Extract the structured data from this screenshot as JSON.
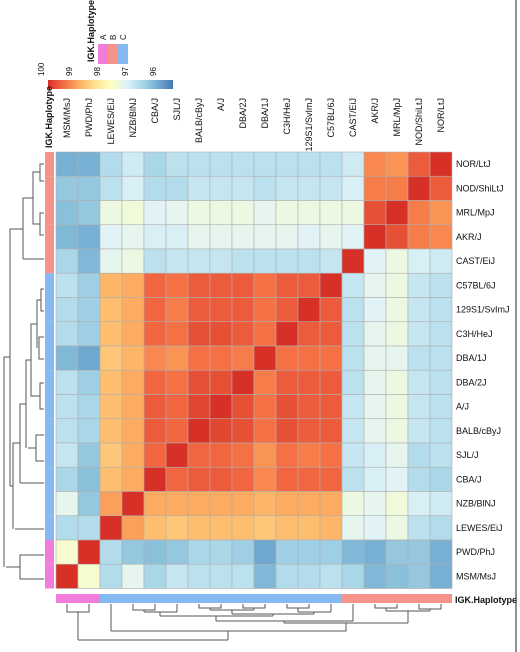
{
  "chart_data": {
    "type": "heatmap",
    "samples": [
      "MSM/MsJ",
      "PWD/PhJ",
      "LEWES/EiJ",
      "NZB/BlNJ",
      "CBA/J",
      "SJL/J",
      "BALB/cByJ",
      "A/J",
      "DBA/2J",
      "DBA/1J",
      "C3H/HeJ",
      "129S1/SvImJ",
      "C57BL/6J",
      "CAST/EiJ",
      "AKR/J",
      "MRL/MpJ",
      "NOD/ShiLtJ",
      "NOR/LtJ"
    ],
    "row_order": [
      "NOR/LtJ",
      "NOD/ShiLtJ",
      "MRL/MpJ",
      "AKR/J",
      "CAST/EiJ",
      "C57BL/6J",
      "129S1/SvImJ",
      "C3H/HeJ",
      "DBA/1J",
      "DBA/2J",
      "A/J",
      "BALB/cByJ",
      "SJL/J",
      "CBA/J",
      "NZB/BlNJ",
      "LEWES/EiJ",
      "PWD/PhJ",
      "MSM/MsJ"
    ],
    "annotation_title": "IGK.Haplotype",
    "haplotype_legend": [
      {
        "label": "A",
        "color": "#F17DDA"
      },
      {
        "label": "B",
        "color": "#F5928A"
      },
      {
        "label": "C",
        "color": "#84B9F2"
      }
    ],
    "haplotype": {
      "MSM/MsJ": "A",
      "PWD/PhJ": "A",
      "LEWES/EiJ": "C",
      "NZB/BlNJ": "C",
      "CBA/J": "C",
      "SJL/J": "C",
      "BALB/cByJ": "C",
      "A/J": "C",
      "DBA/2J": "C",
      "DBA/1J": "C",
      "C3H/HeJ": "C",
      "129S1/SvImJ": "C",
      "C57BL/6J": "C",
      "CAST/EiJ": "B",
      "AKR/J": "B",
      "MRL/MpJ": "B",
      "NOD/ShiLtJ": "B",
      "NOR/LtJ": "B"
    },
    "color_scale": {
      "ticks": [
        100,
        99,
        98,
        97,
        96
      ],
      "range": [
        95.5,
        100
      ],
      "colors": [
        "#D73027",
        "#F46D43",
        "#FDAE61",
        "#FEE090",
        "#FFFFBF",
        "#E0F3F8",
        "#ABD9E9",
        "#74ADD1",
        "#4575B4"
      ]
    },
    "matrix": [
      [
        100,
        97.6,
        96.7,
        97.3,
        96.6,
        96.9,
        96.8,
        96.8,
        96.8,
        96.2,
        96.7,
        96.7,
        96.8,
        96.6,
        96.2,
        96.3,
        96.4,
        96.1
      ],
      [
        97.6,
        100,
        96.7,
        96.4,
        96.3,
        96.4,
        96.6,
        96.6,
        96.5,
        96.0,
        96.5,
        96.5,
        96.5,
        96.2,
        96.1,
        96.4,
        96.4,
        96.1
      ],
      [
        96.7,
        96.7,
        100,
        99.0,
        98.7,
        98.6,
        98.7,
        98.7,
        98.7,
        98.6,
        98.7,
        98.7,
        98.8,
        97.3,
        97.2,
        97.4,
        96.8,
        96.7
      ],
      [
        97.3,
        96.4,
        99.0,
        100,
        98.9,
        98.9,
        98.9,
        98.9,
        98.9,
        98.8,
        98.9,
        98.9,
        98.9,
        97.4,
        97.3,
        97.5,
        97.1,
        97.0
      ],
      [
        96.6,
        96.3,
        98.7,
        98.9,
        100,
        99.5,
        99.6,
        99.6,
        99.5,
        99.2,
        99.5,
        99.5,
        99.5,
        96.8,
        97.1,
        97.2,
        96.7,
        96.6
      ],
      [
        96.9,
        96.4,
        98.6,
        98.9,
        99.5,
        100,
        99.5,
        99.5,
        99.4,
        99.1,
        99.4,
        99.3,
        99.4,
        96.9,
        97.1,
        97.3,
        96.7,
        96.8
      ],
      [
        96.8,
        96.6,
        98.7,
        98.9,
        99.6,
        99.5,
        100,
        99.8,
        99.7,
        99.4,
        99.7,
        99.6,
        99.6,
        96.9,
        97.3,
        97.4,
        96.9,
        96.8
      ],
      [
        96.8,
        96.6,
        98.7,
        98.9,
        99.6,
        99.5,
        99.8,
        100,
        99.7,
        99.4,
        99.7,
        99.6,
        99.6,
        96.9,
        97.3,
        97.4,
        96.9,
        96.8
      ],
      [
        96.8,
        96.5,
        98.7,
        98.9,
        99.5,
        99.4,
        99.7,
        99.7,
        100,
        99.3,
        99.6,
        99.6,
        99.6,
        96.8,
        97.3,
        97.4,
        96.9,
        96.8
      ],
      [
        96.2,
        96.0,
        98.6,
        98.8,
        99.2,
        99.1,
        99.4,
        99.4,
        99.3,
        100,
        99.4,
        99.4,
        99.4,
        96.8,
        97.3,
        97.3,
        96.8,
        96.8
      ],
      [
        96.7,
        96.5,
        98.7,
        98.9,
        99.5,
        99.4,
        99.7,
        99.7,
        99.6,
        99.4,
        100,
        99.6,
        99.6,
        96.8,
        97.3,
        97.4,
        96.9,
        96.8
      ],
      [
        96.7,
        96.5,
        98.7,
        98.9,
        99.5,
        99.3,
        99.6,
        99.6,
        99.6,
        99.4,
        99.6,
        100,
        99.6,
        96.8,
        97.2,
        97.4,
        96.9,
        96.8
      ],
      [
        96.8,
        96.5,
        98.8,
        98.9,
        99.5,
        99.4,
        99.6,
        99.6,
        99.6,
        99.4,
        99.6,
        99.6,
        100,
        96.9,
        97.3,
        97.4,
        96.9,
        96.8
      ],
      [
        96.6,
        96.2,
        97.3,
        97.4,
        96.8,
        96.9,
        96.9,
        96.9,
        96.8,
        96.8,
        96.8,
        96.8,
        96.9,
        100,
        97.2,
        97.4,
        97.1,
        97.0
      ],
      [
        96.2,
        96.1,
        97.2,
        97.3,
        97.1,
        97.1,
        97.3,
        97.3,
        97.3,
        97.3,
        97.3,
        97.2,
        97.3,
        97.2,
        100,
        99.7,
        99.3,
        99.2
      ],
      [
        96.3,
        96.4,
        97.4,
        97.5,
        97.2,
        97.3,
        97.4,
        97.4,
        97.4,
        97.3,
        97.4,
        97.4,
        97.4,
        97.4,
        99.7,
        100,
        99.3,
        99.1
      ],
      [
        96.4,
        96.4,
        96.8,
        97.1,
        96.7,
        96.7,
        96.9,
        96.9,
        96.9,
        96.8,
        96.9,
        96.9,
        96.9,
        97.1,
        99.3,
        99.3,
        100,
        99.6
      ],
      [
        96.1,
        96.1,
        96.7,
        97.0,
        96.6,
        96.8,
        96.8,
        96.8,
        96.8,
        96.8,
        96.8,
        96.8,
        96.8,
        97.0,
        99.2,
        99.1,
        99.6,
        100
      ]
    ]
  }
}
